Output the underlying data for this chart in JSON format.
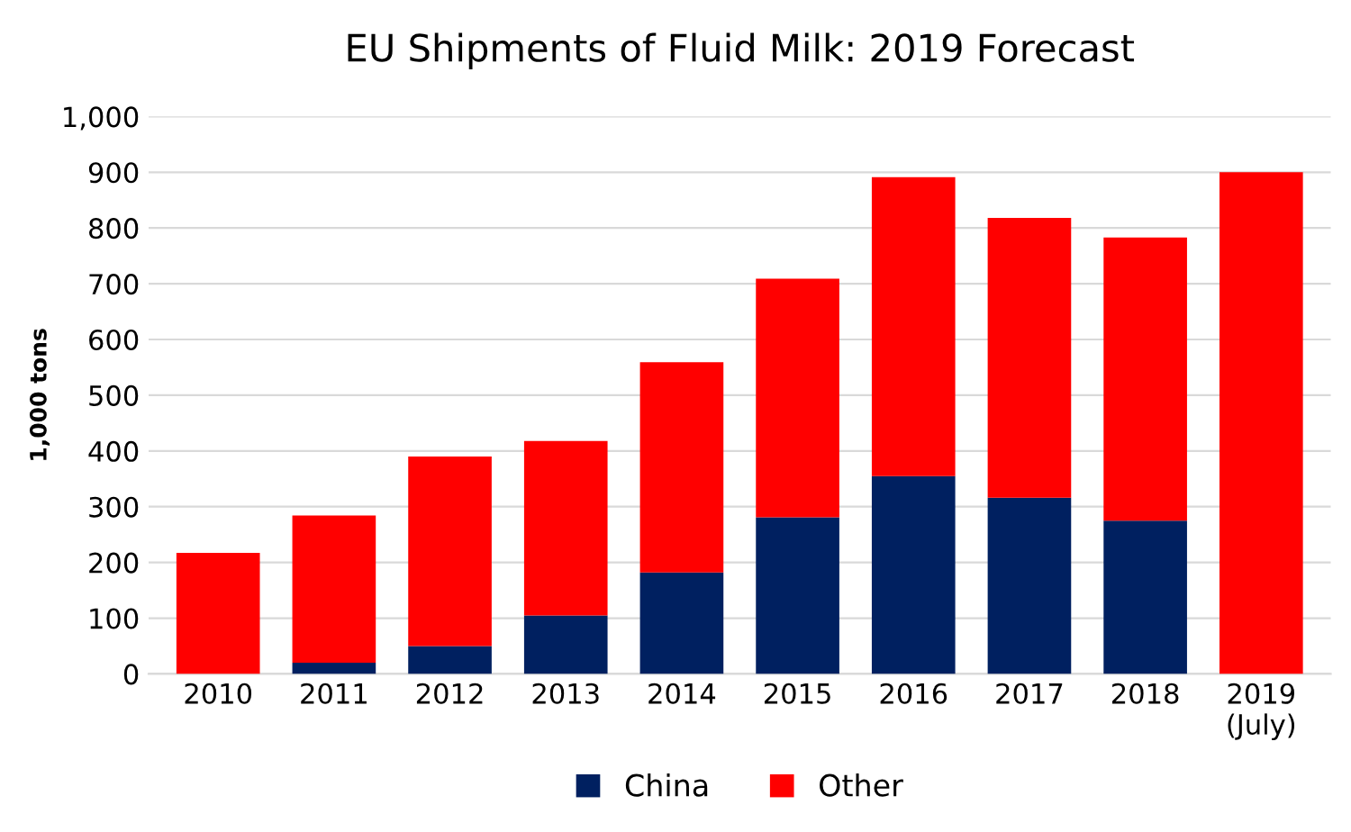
{
  "chart_data": {
    "type": "bar",
    "title": "EU Shipments of Fluid Milk: 2019 Forecast",
    "ylabel": "1,000 tons",
    "categories": [
      "2010",
      "2011",
      "2012",
      "2013",
      "2014",
      "2015",
      "2016",
      "2017",
      "2018",
      "2019\n(July)"
    ],
    "stacked": true,
    "series": [
      {
        "name": "China",
        "color": "#002060",
        "values": [
          0,
          20,
          50,
          105,
          182,
          281,
          355,
          316,
          275,
          0
        ]
      },
      {
        "name": "Other",
        "color": "#ff0000",
        "values": [
          217,
          264,
          340,
          313,
          377,
          428,
          536,
          502,
          508,
          900
        ]
      }
    ],
    "ylim": [
      0,
      1000
    ],
    "yticks": [
      0,
      {
        "value": 100,
        "label": "100"
      },
      200,
      300,
      400,
      500,
      600,
      700,
      800,
      900,
      {
        "value": 1000,
        "label": "1,000"
      }
    ],
    "grid": "y",
    "legend": "bottom"
  }
}
